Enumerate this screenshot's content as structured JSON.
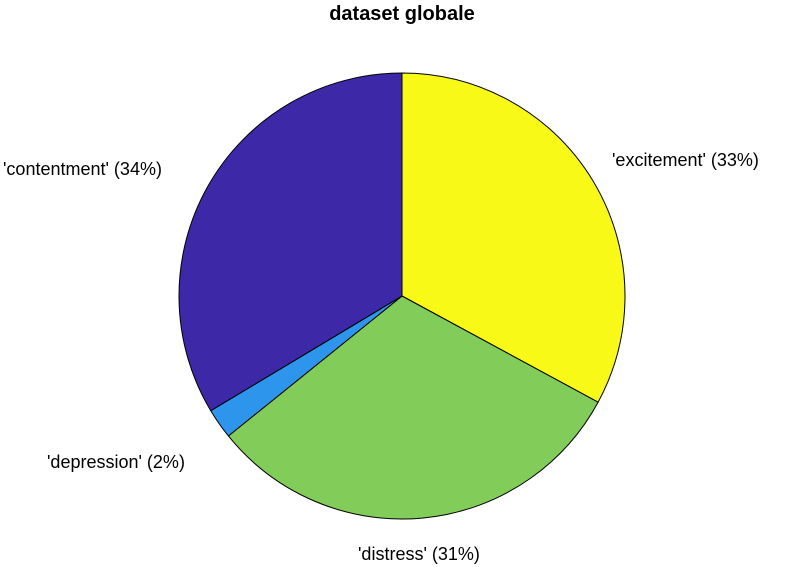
{
  "chart_data": {
    "type": "pie",
    "title": "dataset globale",
    "start_angle_deg": 90,
    "direction": "clockwise",
    "slices": [
      {
        "label": "'excitement' (33%)",
        "category": "excitement",
        "percent": 33,
        "value": 0.329,
        "color": "#f9f917"
      },
      {
        "label": "'distress' (31%)",
        "category": "distress",
        "percent": 31,
        "value": 0.313,
        "color": "#82cc5a"
      },
      {
        "label": "'depression' (2%)",
        "category": "depression",
        "percent": 2,
        "value": 0.022,
        "color": "#2d96ec"
      },
      {
        "label": "'contentment' (34%)",
        "category": "contentment",
        "percent": 34,
        "value": 0.336,
        "color": "#3d29a8"
      }
    ]
  }
}
